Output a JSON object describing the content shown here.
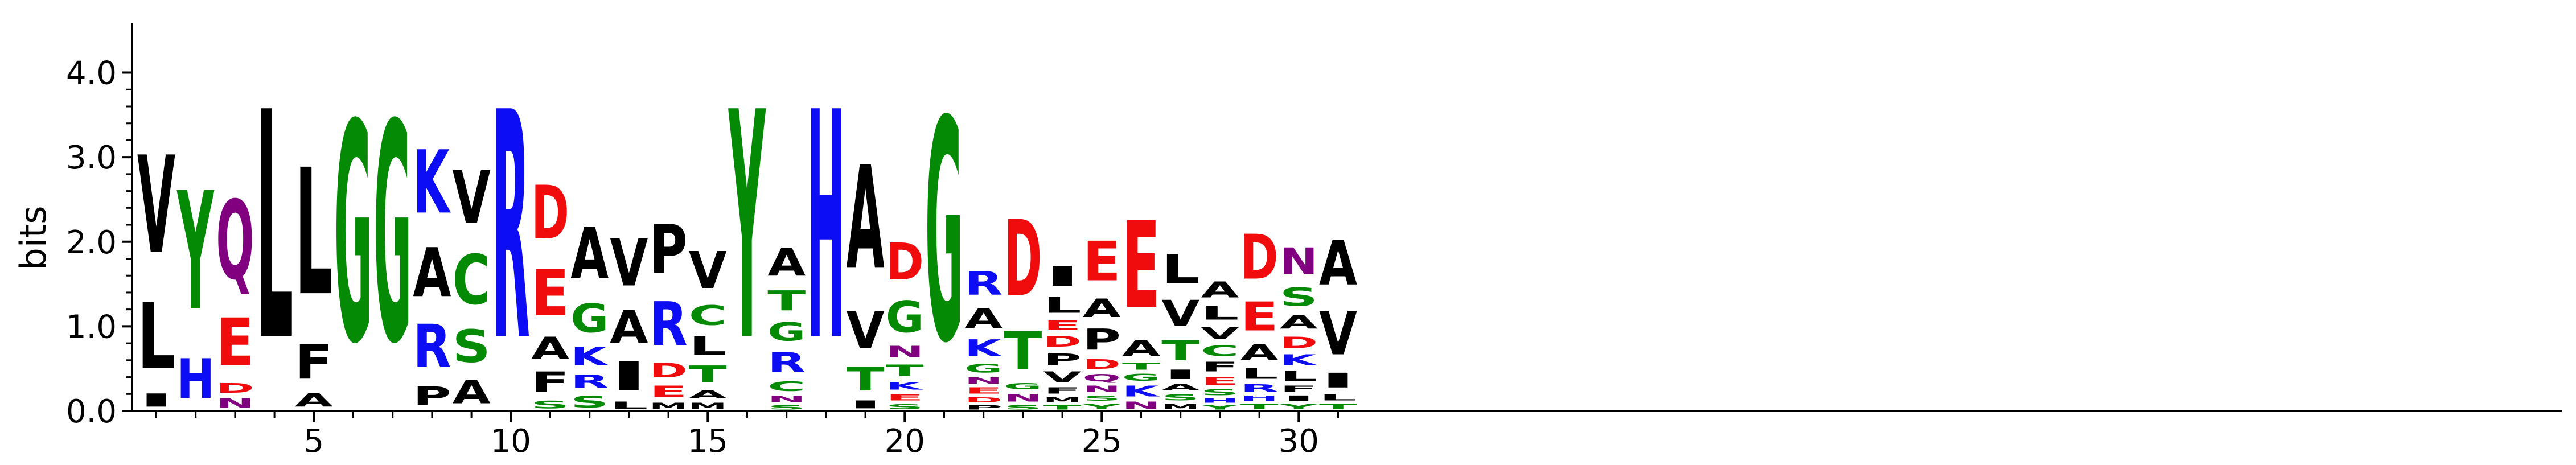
{
  "chart_data": {
    "type": "sequence-logo",
    "ylabel": "bits",
    "ylim": [
      0,
      4.32
    ],
    "yticks": [
      0.0,
      1.0,
      2.0,
      3.0,
      4.0
    ],
    "ytick_labels": [
      "0.0",
      "1.0",
      "2.0",
      "3.0",
      "4.0"
    ],
    "xticks": [
      5,
      10,
      15,
      20,
      25,
      30
    ],
    "xtick_labels": [
      "5",
      "10",
      "15",
      "20",
      "25",
      "30"
    ],
    "positions": [
      {
        "pos": 1,
        "stack": [
          [
            "I",
            0.25
          ],
          [
            "L",
            1.25
          ],
          [
            "V",
            1.85
          ]
        ]
      },
      {
        "pos": 2,
        "stack": [
          [
            "H",
            0.75
          ],
          [
            "Y",
            2.25
          ]
        ]
      },
      {
        "pos": 3,
        "stack": [
          [
            "N",
            0.18
          ],
          [
            "D",
            0.18
          ],
          [
            "E",
            0.9
          ],
          [
            "Q",
            1.5
          ]
        ]
      },
      {
        "pos": 4,
        "stack": [
          [
            "L",
            4.32
          ]
        ]
      },
      {
        "pos": 5,
        "stack": [
          [
            "A",
            0.25
          ],
          [
            "F",
            0.65
          ],
          [
            "L",
            2.4
          ]
        ]
      },
      {
        "pos": 6,
        "stack": [
          [
            "G",
            4.15
          ]
        ]
      },
      {
        "pos": 7,
        "stack": [
          [
            "G",
            4.15
          ]
        ]
      },
      {
        "pos": 8,
        "stack": [
          [
            "P",
            0.35
          ],
          [
            "R",
            0.82
          ],
          [
            "A",
            0.93
          ],
          [
            "K",
            1.2
          ]
        ]
      },
      {
        "pos": 9,
        "stack": [
          [
            "A",
            0.45
          ],
          [
            "S",
            0.62
          ],
          [
            "C",
            0.95
          ],
          [
            "V",
            1.0
          ]
        ]
      },
      {
        "pos": 10,
        "stack": [
          [
            "R",
            4.32
          ]
        ]
      },
      {
        "pos": 11,
        "stack": [
          [
            "S",
            0.15
          ],
          [
            "F",
            0.38
          ],
          [
            "A",
            0.42
          ],
          [
            "E",
            0.88
          ],
          [
            "D",
            1.02
          ]
        ]
      },
      {
        "pos": 12,
        "stack": [
          [
            "S",
            0.22
          ],
          [
            "R",
            0.25
          ],
          [
            "K",
            0.35
          ],
          [
            "G",
            0.55
          ],
          [
            "A",
            0.97
          ]
        ]
      },
      {
        "pos": 13,
        "stack": [
          [
            "L",
            0.13
          ],
          [
            "I",
            0.55
          ],
          [
            "A",
            0.62
          ],
          [
            "V",
            0.9
          ]
        ]
      },
      {
        "pos": 14,
        "stack": [
          [
            "M",
            0.12
          ],
          [
            "E",
            0.22
          ],
          [
            "D",
            0.27
          ],
          [
            "R",
            0.83
          ],
          [
            "P",
            0.93
          ]
        ]
      },
      {
        "pos": 15,
        "stack": [
          [
            "M",
            0.12
          ],
          [
            "A",
            0.15
          ],
          [
            "T",
            0.32
          ],
          [
            "L",
            0.35
          ],
          [
            "C",
            0.37
          ],
          [
            "V",
            0.7
          ]
        ]
      },
      {
        "pos": 16,
        "stack": [
          [
            "Y",
            4.32
          ]
        ]
      },
      {
        "pos": 17,
        "stack": [
          [
            "S",
            0.08
          ],
          [
            "N",
            0.12
          ],
          [
            "C",
            0.18
          ],
          [
            "R",
            0.38
          ],
          [
            "G",
            0.35
          ],
          [
            "T",
            0.38
          ],
          [
            "A",
            0.52
          ]
        ]
      },
      {
        "pos": 18,
        "stack": [
          [
            "H",
            4.32
          ]
        ]
      },
      {
        "pos": 19,
        "stack": [
          [
            "I",
            0.15
          ],
          [
            "T",
            0.45
          ],
          [
            "V",
            0.7
          ],
          [
            "A",
            1.95
          ]
        ]
      },
      {
        "pos": 20,
        "stack": [
          [
            "S",
            0.1
          ],
          [
            "E",
            0.12
          ],
          [
            "K",
            0.15
          ],
          [
            "T",
            0.22
          ],
          [
            "N",
            0.22
          ],
          [
            "G",
            0.6
          ],
          [
            "D",
            0.7
          ]
        ]
      },
      {
        "pos": 21,
        "stack": [
          [
            "G",
            4.2
          ]
        ]
      },
      {
        "pos": 22,
        "stack": [
          [
            "P",
            0.08
          ],
          [
            "D",
            0.1
          ],
          [
            "E",
            0.12
          ],
          [
            "N",
            0.12
          ],
          [
            "G",
            0.16
          ],
          [
            "K",
            0.32
          ],
          [
            "A",
            0.38
          ],
          [
            "R",
            0.45
          ]
        ]
      },
      {
        "pos": 23,
        "stack": [
          [
            "S",
            0.08
          ],
          [
            "N",
            0.15
          ],
          [
            "G",
            0.12
          ],
          [
            "T",
            0.72
          ],
          [
            "D",
            1.45
          ]
        ]
      },
      {
        "pos": 24,
        "stack": [
          [
            "T",
            0.08
          ],
          [
            "M",
            0.1
          ],
          [
            "F",
            0.12
          ],
          [
            "V",
            0.2
          ],
          [
            "P",
            0.22
          ],
          [
            "D",
            0.2
          ],
          [
            "E",
            0.18
          ],
          [
            "L",
            0.3
          ],
          [
            "I",
            0.38
          ]
        ]
      },
      {
        "pos": 25,
        "stack": [
          [
            "Y",
            0.1
          ],
          [
            "S",
            0.1
          ],
          [
            "N",
            0.12
          ],
          [
            "Q",
            0.14
          ],
          [
            "D",
            0.18
          ],
          [
            "P",
            0.4
          ],
          [
            "A",
            0.35
          ],
          [
            "E",
            0.75
          ]
        ]
      },
      {
        "pos": 26,
        "stack": [
          [
            "N",
            0.13
          ],
          [
            "K",
            0.2
          ],
          [
            "G",
            0.13
          ],
          [
            "T",
            0.13
          ],
          [
            "A",
            0.3
          ],
          [
            "E",
            1.65
          ]
        ]
      },
      {
        "pos": 27,
        "stack": [
          [
            "M",
            0.1
          ],
          [
            "S",
            0.12
          ],
          [
            "A",
            0.12
          ],
          [
            "I",
            0.18
          ],
          [
            "T",
            0.38
          ],
          [
            "V",
            0.5
          ],
          [
            "L",
            0.55
          ]
        ]
      },
      {
        "pos": 28,
        "stack": [
          [
            "Y",
            0.08
          ],
          [
            "H",
            0.08
          ],
          [
            "S",
            0.12
          ],
          [
            "E",
            0.15
          ],
          [
            "F",
            0.18
          ],
          [
            "C",
            0.2
          ],
          [
            "V",
            0.22
          ],
          [
            "L",
            0.25
          ],
          [
            "A",
            0.3
          ]
        ]
      },
      {
        "pos": 29,
        "stack": [
          [
            "T",
            0.1
          ],
          [
            "H",
            0.1
          ],
          [
            "R",
            0.14
          ],
          [
            "L",
            0.2
          ],
          [
            "A",
            0.3
          ],
          [
            "E",
            0.55
          ],
          [
            "D",
            0.85
          ]
        ]
      },
      {
        "pos": 30,
        "stack": [
          [
            "Y",
            0.1
          ],
          [
            "I",
            0.1
          ],
          [
            "F",
            0.12
          ],
          [
            "L",
            0.18
          ],
          [
            "K",
            0.2
          ],
          [
            "D",
            0.22
          ],
          [
            "A",
            0.25
          ],
          [
            "S",
            0.35
          ],
          [
            "N",
            0.5
          ]
        ]
      },
      {
        "pos": 31,
        "stack": [
          [
            "T",
            0.1
          ],
          [
            "L",
            0.12
          ],
          [
            "I",
            0.28
          ],
          [
            "V",
            0.82
          ],
          [
            "A",
            0.85
          ]
        ]
      }
    ]
  },
  "colors": {
    "black": "#000000",
    "green": "#058A05",
    "blue": "#0D0DF5",
    "red": "#F00C0C",
    "purple": "#800080",
    "residues": {
      "A": "#000000",
      "V": "#000000",
      "L": "#000000",
      "I": "#000000",
      "P": "#000000",
      "F": "#000000",
      "M": "#000000",
      "W": "#000000",
      "G": "#058A05",
      "S": "#058A05",
      "T": "#058A05",
      "Y": "#058A05",
      "C": "#058A05",
      "K": "#0D0DF5",
      "R": "#0D0DF5",
      "H": "#0D0DF5",
      "D": "#F00C0C",
      "E": "#F00C0C",
      "N": "#800080",
      "Q": "#800080"
    }
  }
}
